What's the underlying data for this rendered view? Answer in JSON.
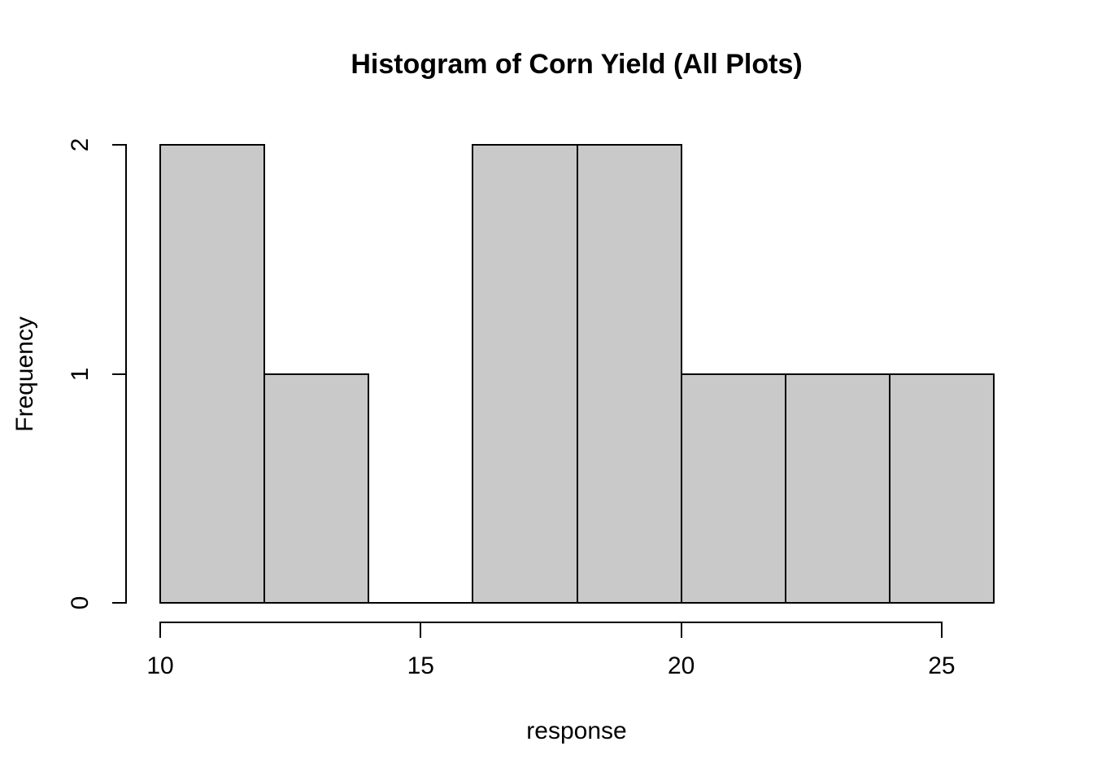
{
  "chart_data": {
    "type": "bar",
    "chart_style": "histogram",
    "title": "Histogram of Corn Yield (All Plots)",
    "xlabel": "response",
    "ylabel": "Frequency",
    "bins": {
      "breaks": [
        10,
        12,
        14,
        16,
        18,
        20,
        22,
        24,
        26
      ],
      "counts": [
        2,
        1,
        0,
        2,
        2,
        1,
        1,
        1
      ]
    },
    "x_ticks": [
      10,
      15,
      20,
      25
    ],
    "y_ticks": [
      0,
      1,
      2
    ],
    "xlim": [
      10,
      26
    ],
    "ylim": [
      0,
      2
    ],
    "grid": false,
    "legend": "none",
    "colors": {
      "bar_fill": "#c9c9c9",
      "bar_stroke": "#000000",
      "text": "#000000",
      "background": "#ffffff"
    }
  }
}
